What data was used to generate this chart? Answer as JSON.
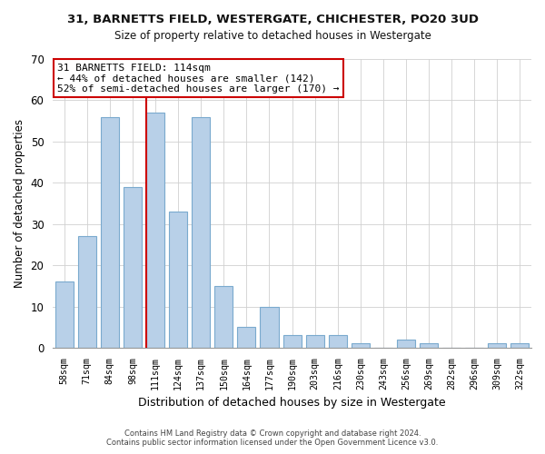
{
  "title1": "31, BARNETTS FIELD, WESTERGATE, CHICHESTER, PO20 3UD",
  "title2": "Size of property relative to detached houses in Westergate",
  "xlabel": "Distribution of detached houses by size in Westergate",
  "ylabel": "Number of detached properties",
  "bar_labels": [
    "58sqm",
    "71sqm",
    "84sqm",
    "98sqm",
    "111sqm",
    "124sqm",
    "137sqm",
    "150sqm",
    "164sqm",
    "177sqm",
    "190sqm",
    "203sqm",
    "216sqm",
    "230sqm",
    "243sqm",
    "256sqm",
    "269sqm",
    "282sqm",
    "296sqm",
    "309sqm",
    "322sqm"
  ],
  "bar_heights": [
    16,
    27,
    56,
    39,
    57,
    33,
    56,
    15,
    5,
    10,
    3,
    3,
    3,
    1,
    0,
    2,
    1,
    0,
    0,
    1,
    1
  ],
  "bar_color": "#b8d0e8",
  "bar_edge_color": "#7aaace",
  "highlight_bar_index": 4,
  "vline_color": "#cc0000",
  "annotation_title": "31 BARNETTS FIELD: 114sqm",
  "annotation_line1": "← 44% of detached houses are smaller (142)",
  "annotation_line2": "52% of semi-detached houses are larger (170) →",
  "annotation_box_facecolor": "#ffffff",
  "annotation_box_edgecolor": "#cc0000",
  "ylim": [
    0,
    70
  ],
  "yticks": [
    0,
    10,
    20,
    30,
    40,
    50,
    60,
    70
  ],
  "footer1": "Contains HM Land Registry data © Crown copyright and database right 2024.",
  "footer2": "Contains public sector information licensed under the Open Government Licence v3.0."
}
